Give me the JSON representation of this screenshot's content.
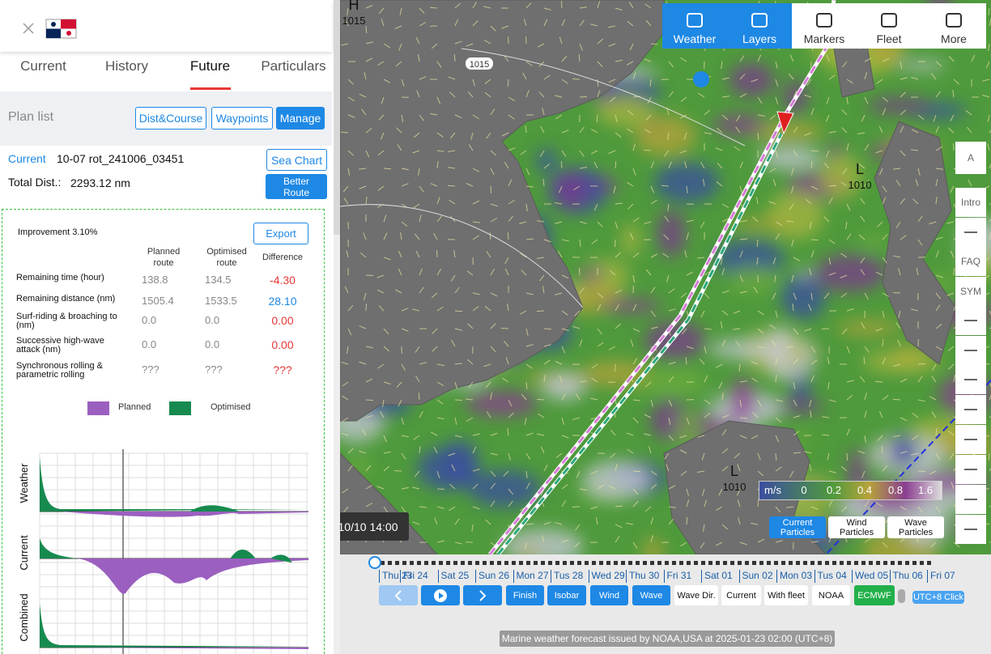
{
  "header": {
    "tabs": [
      "Current",
      "History",
      "Future",
      "Particulars"
    ],
    "active_tab": 2
  },
  "plan": {
    "label": "Plan list",
    "buttons": [
      "Dist&Course",
      "Waypoints",
      "Manage"
    ],
    "current_label": "Current",
    "current_name": "10-07 rot_241006_03451",
    "sea_chart": "Sea Chart",
    "total_label": "Total Dist.:",
    "total_value": "2293.12 nm",
    "better_route": "Better Route"
  },
  "comparison": {
    "improvement": "Improvement 3.10%",
    "export": "Export",
    "columns": [
      "Planned route",
      "Optimised route",
      "Difference"
    ],
    "rows": [
      {
        "label": "Remaining time (hour)",
        "planned": "138.8",
        "optimised": "134.5",
        "difference": "-4.30",
        "color": "#e53935"
      },
      {
        "label": "Remaining distance (nm)",
        "planned": "1505.4",
        "optimised": "1533.5",
        "difference": "28.10",
        "color": "#1e88e5"
      },
      {
        "label": "Surf-riding & broaching to (nm)",
        "planned": "0.0",
        "optimised": "0.0",
        "difference": "0.00",
        "color": "#e53935"
      },
      {
        "label": "Successive high-wave attack (nm)",
        "planned": "0.0",
        "optimised": "0.0",
        "difference": "0.00",
        "color": "#e53935"
      },
      {
        "label": "Synchronous rolling & parametric rolling",
        "planned": "???",
        "optimised": "???",
        "difference": "???",
        "color": "#e53935"
      }
    ],
    "legend": [
      {
        "name": "Planned",
        "color": "#9b5fc0"
      },
      {
        "name": "Optimised",
        "color": "#178a4f"
      }
    ],
    "chart_labels": [
      "Weather",
      "Current",
      "Combined"
    ]
  },
  "map": {
    "pressure": [
      {
        "label": "H",
        "value": "1015"
      },
      {
        "label": "L",
        "value": "1010"
      },
      {
        "label": "L",
        "value": "1010"
      }
    ],
    "isobar_label": "1015"
  },
  "toolbar": [
    "Weather",
    "Layers",
    "Markers",
    "Fleet",
    "More"
  ],
  "sidebar": [
    "A",
    "Intro",
    "FAQ",
    "SYM"
  ],
  "legend": {
    "unit": "m/s",
    "ticks": [
      "0",
      "0.2",
      "0.4",
      "0.8",
      "1.6"
    ]
  },
  "particles": [
    "Current Particles",
    "Wind Particles",
    "Wave Particles"
  ],
  "timeline": {
    "tooltip": "10/10 14:00",
    "dates": [
      "Thu 23",
      "Fri 24",
      "Sat 25",
      "Sun 26",
      "Mon 27",
      "Tus 28",
      "Wed 29",
      "Thu 30",
      "Fri 31",
      "Sat 01",
      "Sun 02",
      "Mon 03",
      "Tus 04",
      "Wed 05",
      "Thu 06",
      "Fri 07"
    ],
    "buttons": [
      "Finish",
      "Isobar",
      "Wind",
      "Wave",
      "Wave Dir.",
      "Current",
      "With fleet",
      "NOAA",
      "ECMWF"
    ],
    "timezone": "UTC+8 Click"
  },
  "footer": "Marine weather forecast issued by NOAA,USA at 2025-01-23 02:00 (UTC+8)"
}
